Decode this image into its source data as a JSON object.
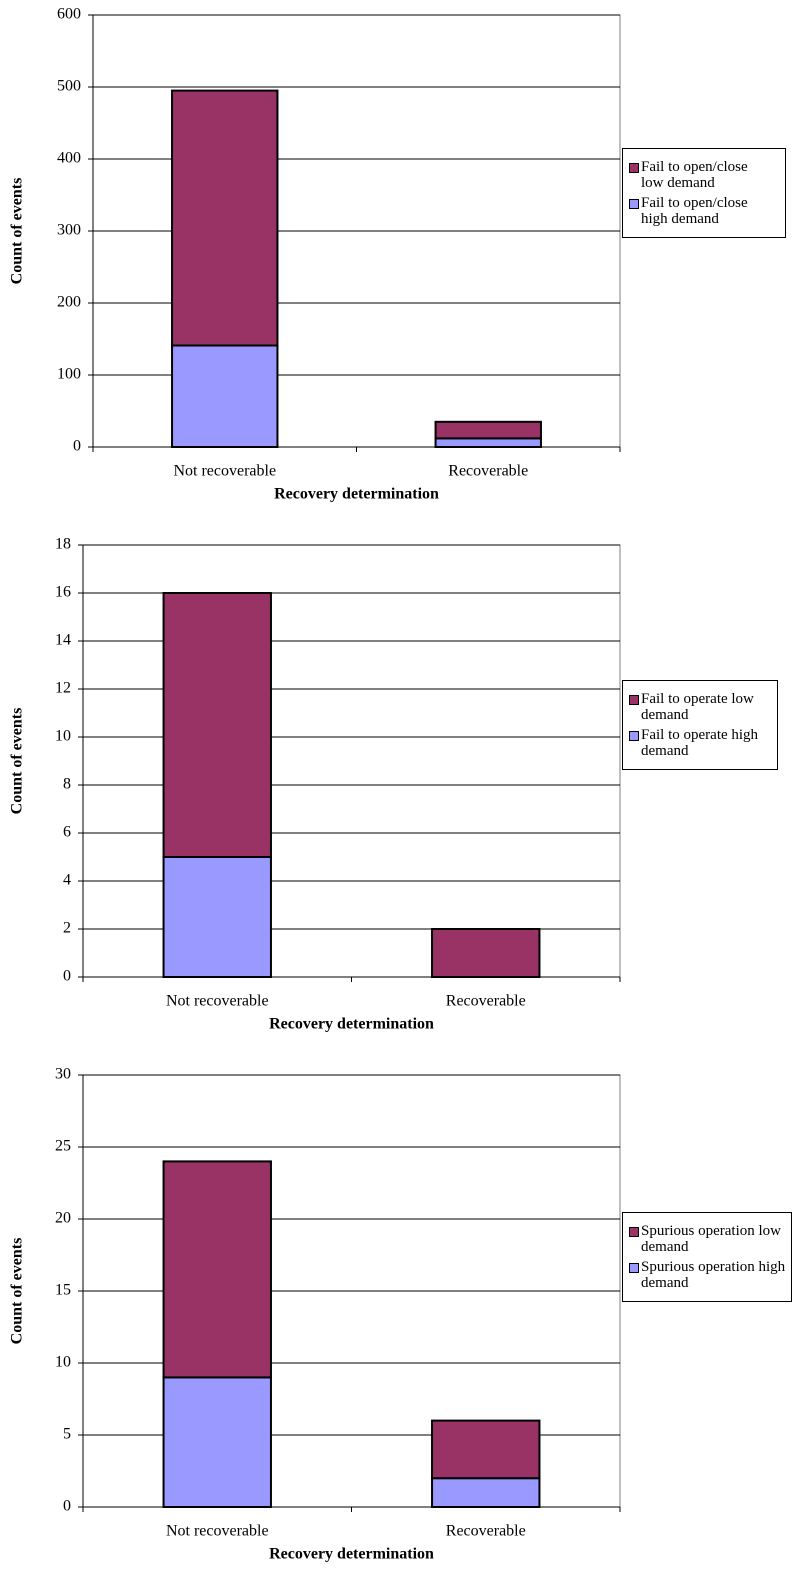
{
  "chart_data": [
    {
      "type": "bar",
      "stacked": true,
      "y_label": "Count of events",
      "x_label": "Recovery determination",
      "categories": [
        "Not recoverable",
        "Recoverable"
      ],
      "series": [
        {
          "name": "Fail to open/close high demand",
          "color": "#9999ff",
          "values": [
            141,
            12
          ]
        },
        {
          "name": "Fail to open/close low demand",
          "color": "#993366",
          "values": [
            354,
            23
          ]
        }
      ],
      "ylim": [
        0,
        600
      ],
      "yticks": [
        0,
        100,
        200,
        300,
        400,
        500,
        600
      ],
      "grid": true,
      "legend": "right"
    },
    {
      "type": "bar",
      "stacked": true,
      "y_label": "Count of events",
      "x_label": "Recovery determination",
      "categories": [
        "Not recoverable",
        "Recoverable"
      ],
      "series": [
        {
          "name": "Fail to operate high demand",
          "color": "#9999ff",
          "values": [
            5,
            0
          ]
        },
        {
          "name": "Fail to operate low demand",
          "color": "#993366",
          "values": [
            11,
            2
          ]
        }
      ],
      "ylim": [
        0,
        18
      ],
      "yticks": [
        0,
        2,
        4,
        6,
        8,
        10,
        12,
        14,
        16,
        18
      ],
      "grid": true,
      "legend": "right"
    },
    {
      "type": "bar",
      "stacked": true,
      "y_label": "Count of events",
      "x_label": "Recovery determination",
      "categories": [
        "Not recoverable",
        "Recoverable"
      ],
      "series": [
        {
          "name": "Spurious operation high demand",
          "color": "#9999ff",
          "values": [
            9,
            2
          ]
        },
        {
          "name": "Spurious operation low demand",
          "color": "#993366",
          "values": [
            15,
            4
          ]
        }
      ],
      "ylim": [
        0,
        30
      ],
      "yticks": [
        0,
        5,
        10,
        15,
        20,
        25,
        30
      ],
      "grid": true,
      "legend": "right"
    }
  ]
}
